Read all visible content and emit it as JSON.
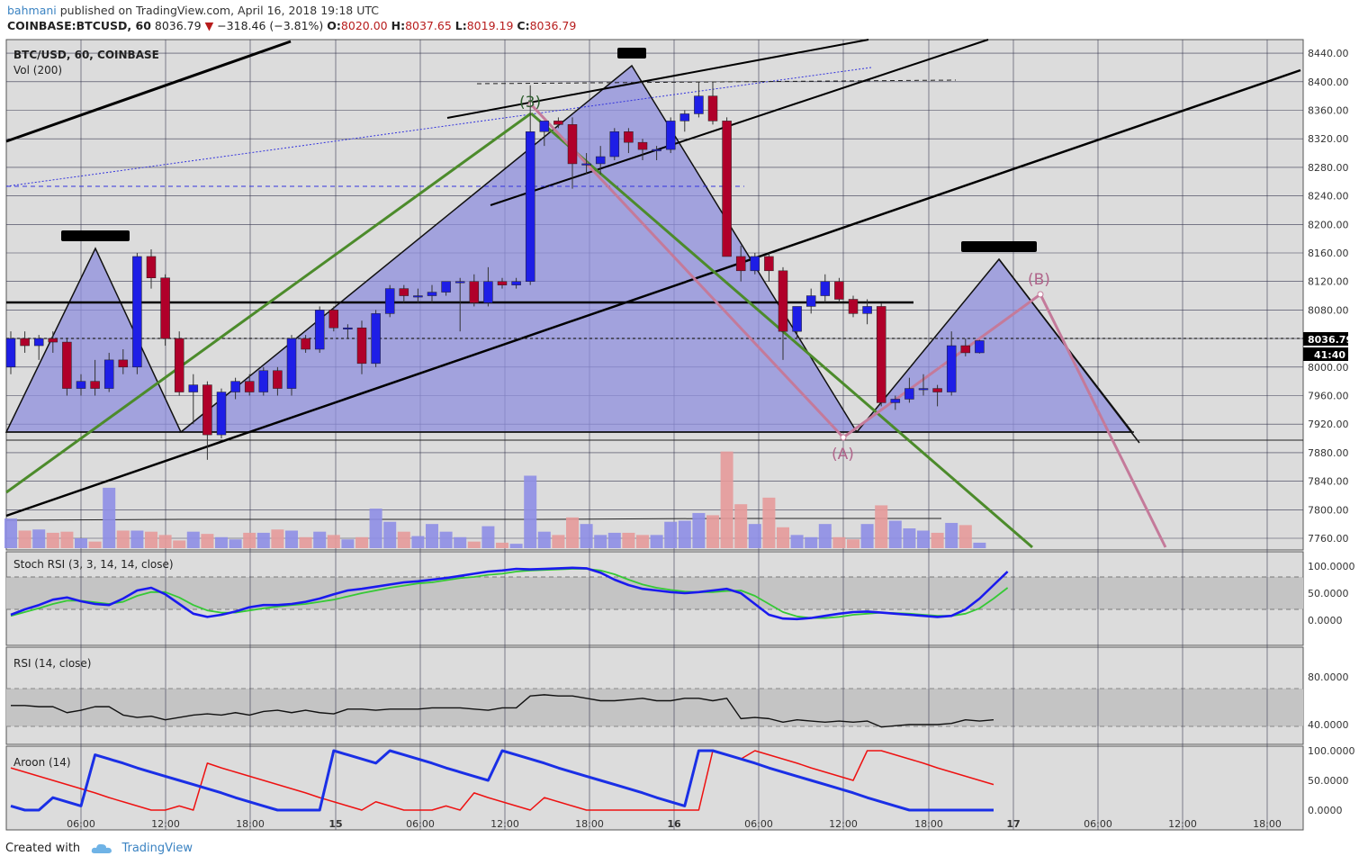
{
  "header": {
    "author": "bahmani",
    "published": "published on TradingView.com, April 16, 2018 19:18 UTC"
  },
  "symbol_line": {
    "symbol": "COINBASE:BTCUSD, 60",
    "last": "8036.79",
    "change_arrow": "▼",
    "change": "−318.46 (−3.81%)",
    "o_label": "O:",
    "o": "8020.00",
    "h_label": "H:",
    "h": "8037.65",
    "l_label": "L:",
    "l": "8019.19",
    "c_label": "C:",
    "c": "8036.79"
  },
  "main_pane": {
    "title": "BTC/USD, 60, COINBASE",
    "vol_label": "Vol (200)",
    "price_tag": "8036.79",
    "countdown_tag": "41:40",
    "annotations": {
      "wave3": "(3)",
      "waveA": "(A)",
      "waveB": "(B)"
    }
  },
  "stoch_pane": {
    "label": "Stoch RSI (3, 3, 14, 14, close)"
  },
  "rsi_pane": {
    "label": "RSI (14, close)"
  },
  "aroon_pane": {
    "label": "Aroon (14)"
  },
  "footer": {
    "created_with": "Created with",
    "brand": "TradingView"
  },
  "colors": {
    "up": "#1e1ee6",
    "down": "#b0002a",
    "wave_fill": "#8f8fdd",
    "pane_bg": "#d9d9d9",
    "green": "#4c8b2b",
    "pink": "#c47a9a",
    "stoch_k": "#1a1aee",
    "stoch_d": "#35c935",
    "aroon_up": "#1a2fe6",
    "aroon_down": "#ee1111"
  },
  "chart_data": [
    {
      "type": "candlestick",
      "title": "BTC/USD, 60, COINBASE",
      "y_ticks": [
        "8440.00",
        "8400.00",
        "8360.00",
        "8320.00",
        "8280.00",
        "8240.00",
        "8200.00",
        "8160.00",
        "8120.00",
        "8080.00",
        "8040.00",
        "8000.00",
        "7960.00",
        "7920.00",
        "7880.00",
        "7840.00",
        "7800.00",
        "7760.00"
      ],
      "x_ticks": [
        "06:00",
        "12:00",
        "18:00",
        "15",
        "06:00",
        "12:00",
        "18:00",
        "16",
        "06:00",
        "12:00",
        "18:00",
        "17",
        "06:00",
        "12:00",
        "18:00"
      ],
      "ylim": [
        7740,
        8450
      ],
      "candles": [
        {
          "o": 8000,
          "h": 8050,
          "l": 7990,
          "c": 8040
        },
        {
          "o": 8040,
          "h": 8050,
          "l": 8020,
          "c": 8030
        },
        {
          "o": 8030,
          "h": 8045,
          "l": 8010,
          "c": 8040
        },
        {
          "o": 8040,
          "h": 8050,
          "l": 8020,
          "c": 8035
        },
        {
          "o": 8035,
          "h": 8040,
          "l": 7960,
          "c": 7970
        },
        {
          "o": 7970,
          "h": 7990,
          "l": 7960,
          "c": 7980
        },
        {
          "o": 7980,
          "h": 8010,
          "l": 7960,
          "c": 7970
        },
        {
          "o": 7970,
          "h": 8020,
          "l": 7965,
          "c": 8010
        },
        {
          "o": 8010,
          "h": 8025,
          "l": 7990,
          "c": 8000
        },
        {
          "o": 8000,
          "h": 8160,
          "l": 7990,
          "c": 8155
        },
        {
          "o": 8155,
          "h": 8165,
          "l": 8110,
          "c": 8125
        },
        {
          "o": 8125,
          "h": 8130,
          "l": 8030,
          "c": 8040
        },
        {
          "o": 8040,
          "h": 8050,
          "l": 7960,
          "c": 7965
        },
        {
          "o": 7965,
          "h": 7990,
          "l": 7920,
          "c": 7975
        },
        {
          "o": 7975,
          "h": 7980,
          "l": 7870,
          "c": 7905
        },
        {
          "o": 7905,
          "h": 7970,
          "l": 7900,
          "c": 7965
        },
        {
          "o": 7965,
          "h": 7985,
          "l": 7955,
          "c": 7980
        },
        {
          "o": 7980,
          "h": 7990,
          "l": 7960,
          "c": 7965
        },
        {
          "o": 7965,
          "h": 8000,
          "l": 7960,
          "c": 7995
        },
        {
          "o": 7995,
          "h": 8000,
          "l": 7960,
          "c": 7970
        },
        {
          "o": 7970,
          "h": 8045,
          "l": 7960,
          "c": 8040
        },
        {
          "o": 8040,
          "h": 8045,
          "l": 8020,
          "c": 8025
        },
        {
          "o": 8025,
          "h": 8085,
          "l": 8020,
          "c": 8080
        },
        {
          "o": 8080,
          "h": 8085,
          "l": 8050,
          "c": 8055
        },
        {
          "o": 8055,
          "h": 8060,
          "l": 8040,
          "c": 8055
        },
        {
          "o": 8055,
          "h": 8065,
          "l": 7990,
          "c": 8005
        },
        {
          "o": 8005,
          "h": 8080,
          "l": 8000,
          "c": 8075
        },
        {
          "o": 8075,
          "h": 8115,
          "l": 8070,
          "c": 8110
        },
        {
          "o": 8110,
          "h": 8115,
          "l": 8090,
          "c": 8100
        },
        {
          "o": 8100,
          "h": 8110,
          "l": 8090,
          "c": 8100
        },
        {
          "o": 8100,
          "h": 8115,
          "l": 8090,
          "c": 8105
        },
        {
          "o": 8105,
          "h": 8120,
          "l": 8100,
          "c": 8120
        },
        {
          "o": 8120,
          "h": 8125,
          "l": 8050,
          "c": 8120
        },
        {
          "o": 8120,
          "h": 8130,
          "l": 8085,
          "c": 8090
        },
        {
          "o": 8090,
          "h": 8140,
          "l": 8085,
          "c": 8120
        },
        {
          "o": 8120,
          "h": 8125,
          "l": 8110,
          "c": 8115
        },
        {
          "o": 8115,
          "h": 8125,
          "l": 8110,
          "c": 8120
        },
        {
          "o": 8120,
          "h": 8395,
          "l": 8115,
          "c": 8330
        },
        {
          "o": 8330,
          "h": 8340,
          "l": 8310,
          "c": 8345
        },
        {
          "o": 8345,
          "h": 8350,
          "l": 8335,
          "c": 8340
        },
        {
          "o": 8340,
          "h": 8350,
          "l": 8250,
          "c": 8285
        },
        {
          "o": 8285,
          "h": 8300,
          "l": 8270,
          "c": 8285
        },
        {
          "o": 8285,
          "h": 8310,
          "l": 8270,
          "c": 8295
        },
        {
          "o": 8295,
          "h": 8335,
          "l": 8290,
          "c": 8330
        },
        {
          "o": 8330,
          "h": 8335,
          "l": 8300,
          "c": 8315
        },
        {
          "o": 8315,
          "h": 8320,
          "l": 8290,
          "c": 8305
        },
        {
          "o": 8305,
          "h": 8310,
          "l": 8290,
          "c": 8305
        },
        {
          "o": 8305,
          "h": 8350,
          "l": 8300,
          "c": 8345
        },
        {
          "o": 8345,
          "h": 8360,
          "l": 8330,
          "c": 8355
        },
        {
          "o": 8355,
          "h": 8400,
          "l": 8350,
          "c": 8380
        },
        {
          "o": 8380,
          "h": 8400,
          "l": 8340,
          "c": 8345
        },
        {
          "o": 8345,
          "h": 8350,
          "l": 8160,
          "c": 8155
        },
        {
          "o": 8155,
          "h": 8170,
          "l": 8120,
          "c": 8135
        },
        {
          "o": 8135,
          "h": 8160,
          "l": 8130,
          "c": 8155
        },
        {
          "o": 8155,
          "h": 8160,
          "l": 8120,
          "c": 8135
        },
        {
          "o": 8135,
          "h": 8140,
          "l": 8010,
          "c": 8050
        },
        {
          "o": 8050,
          "h": 8085,
          "l": 8040,
          "c": 8085
        },
        {
          "o": 8085,
          "h": 8110,
          "l": 8075,
          "c": 8100
        },
        {
          "o": 8100,
          "h": 8130,
          "l": 8090,
          "c": 8120
        },
        {
          "o": 8120,
          "h": 8125,
          "l": 8090,
          "c": 8095
        },
        {
          "o": 8095,
          "h": 8100,
          "l": 8070,
          "c": 8075
        },
        {
          "o": 8075,
          "h": 8095,
          "l": 8060,
          "c": 8085
        },
        {
          "o": 8085,
          "h": 8090,
          "l": 7945,
          "c": 7950
        },
        {
          "o": 7950,
          "h": 7960,
          "l": 7940,
          "c": 7955
        },
        {
          "o": 7955,
          "h": 7985,
          "l": 7950,
          "c": 7970
        },
        {
          "o": 7970,
          "h": 7990,
          "l": 7960,
          "c": 7970
        },
        {
          "o": 7970,
          "h": 7975,
          "l": 7945,
          "c": 7965
        },
        {
          "o": 7965,
          "h": 8050,
          "l": 7960,
          "c": 8030
        },
        {
          "o": 8030,
          "h": 8040,
          "l": 8015,
          "c": 8020
        },
        {
          "o": 8020,
          "h": 8038,
          "l": 8019,
          "c": 8037
        }
      ],
      "volume": [
        27,
        16,
        17,
        14,
        15,
        9,
        6,
        55,
        16,
        16,
        15,
        12,
        7,
        15,
        13,
        10,
        8,
        14,
        14,
        17,
        16,
        10,
        15,
        12,
        8,
        10,
        36,
        24,
        15,
        11,
        22,
        15,
        10,
        6,
        20,
        5,
        4,
        66,
        15,
        12,
        28,
        22,
        12,
        14,
        14,
        12,
        12,
        24,
        25,
        32,
        30,
        88,
        40,
        22,
        46,
        19,
        12,
        10,
        22,
        10,
        8,
        22,
        39,
        25,
        18,
        16,
        14,
        23,
        21,
        5
      ]
    },
    {
      "type": "line",
      "title": "Stoch RSI (3, 3, 14, 14, close)",
      "y_ticks": [
        "100.0000",
        "50.0000",
        "0.0000"
      ],
      "ylim": [
        -10,
        115
      ],
      "series": [
        {
          "values": [
            10,
            20,
            28,
            38,
            42,
            35,
            30,
            28,
            40,
            55,
            60,
            48,
            30,
            12,
            6,
            10,
            16,
            24,
            28,
            28,
            30,
            34,
            40,
            48,
            55,
            58,
            62,
            66,
            70,
            72,
            75,
            78,
            82,
            86,
            90,
            92,
            95,
            94,
            95,
            96,
            97,
            96,
            88,
            75,
            65,
            58,
            55,
            52,
            50,
            52,
            55,
            58,
            50,
            30,
            10,
            3,
            2,
            4,
            8,
            12,
            15,
            16,
            14,
            12,
            10,
            8,
            6,
            8,
            20,
            40,
            65,
            90
          ]
        },
        {
          "values": [
            8,
            15,
            22,
            30,
            36,
            36,
            33,
            30,
            34,
            45,
            52,
            52,
            42,
            28,
            18,
            14,
            14,
            18,
            22,
            25,
            28,
            30,
            34,
            38,
            44,
            50,
            55,
            60,
            64,
            68,
            70,
            74,
            78,
            80,
            84,
            86,
            90,
            92,
            93,
            94,
            95,
            95,
            92,
            85,
            75,
            66,
            60,
            56,
            53,
            52,
            52,
            54,
            55,
            45,
            30,
            15,
            7,
            4,
            4,
            6,
            10,
            12,
            14,
            13,
            12,
            10,
            8,
            8,
            12,
            22,
            40,
            60
          ]
        }
      ]
    },
    {
      "type": "line",
      "title": "RSI (14, close)",
      "y_ticks": [
        "80.0000",
        "40.0000"
      ],
      "ylim": [
        25,
        95
      ],
      "series": [
        {
          "values": [
            56,
            56,
            55,
            55,
            50,
            52,
            55,
            55,
            48,
            46,
            47,
            44,
            46,
            48,
            49,
            48,
            50,
            48,
            51,
            52,
            50,
            52,
            50,
            49,
            53,
            53,
            52,
            53,
            53,
            53,
            54,
            54,
            54,
            53,
            52,
            54,
            54,
            64,
            65,
            64,
            64,
            62,
            60,
            60,
            61,
            62,
            60,
            60,
            62,
            62,
            60,
            62,
            45,
            46,
            45,
            42,
            44,
            43,
            42,
            43,
            42,
            43,
            38,
            39,
            40,
            40,
            40,
            41,
            44,
            43,
            44
          ]
        }
      ]
    },
    {
      "type": "line",
      "title": "Aroon (14)",
      "y_ticks": [
        "100.0000",
        "50.0000",
        "0.0000"
      ],
      "ylim": [
        -8,
        110
      ],
      "series": [
        {
          "values": [
            7,
            0,
            0,
            21,
            14,
            7,
            93,
            86,
            79,
            71,
            64,
            57,
            50,
            43,
            36,
            29,
            21,
            14,
            7,
            0,
            0,
            0,
            0,
            100,
            93,
            86,
            79,
            100,
            93,
            86,
            79,
            71,
            64,
            57,
            50,
            100,
            93,
            86,
            79,
            71,
            64,
            57,
            50,
            43,
            36,
            29,
            21,
            14,
            7,
            100,
            100,
            93,
            86,
            79,
            71,
            64,
            57,
            50,
            43,
            36,
            29,
            21,
            14,
            7,
            0,
            0,
            0,
            0,
            0,
            0,
            0
          ]
        },
        {
          "values": [
            71,
            64,
            57,
            50,
            43,
            36,
            29,
            21,
            14,
            7,
            0,
            0,
            7,
            0,
            79,
            71,
            64,
            57,
            50,
            43,
            36,
            29,
            21,
            14,
            7,
            0,
            14,
            7,
            0,
            0,
            0,
            7,
            0,
            29,
            21,
            14,
            7,
            0,
            21,
            14,
            7,
            0,
            0,
            0,
            0,
            0,
            0,
            0,
            0,
            0,
            100,
            93,
            86,
            100,
            93,
            86,
            79,
            71,
            64,
            57,
            50,
            100,
            100,
            93,
            86,
            79,
            71,
            64,
            57,
            50,
            43
          ]
        }
      ]
    }
  ]
}
